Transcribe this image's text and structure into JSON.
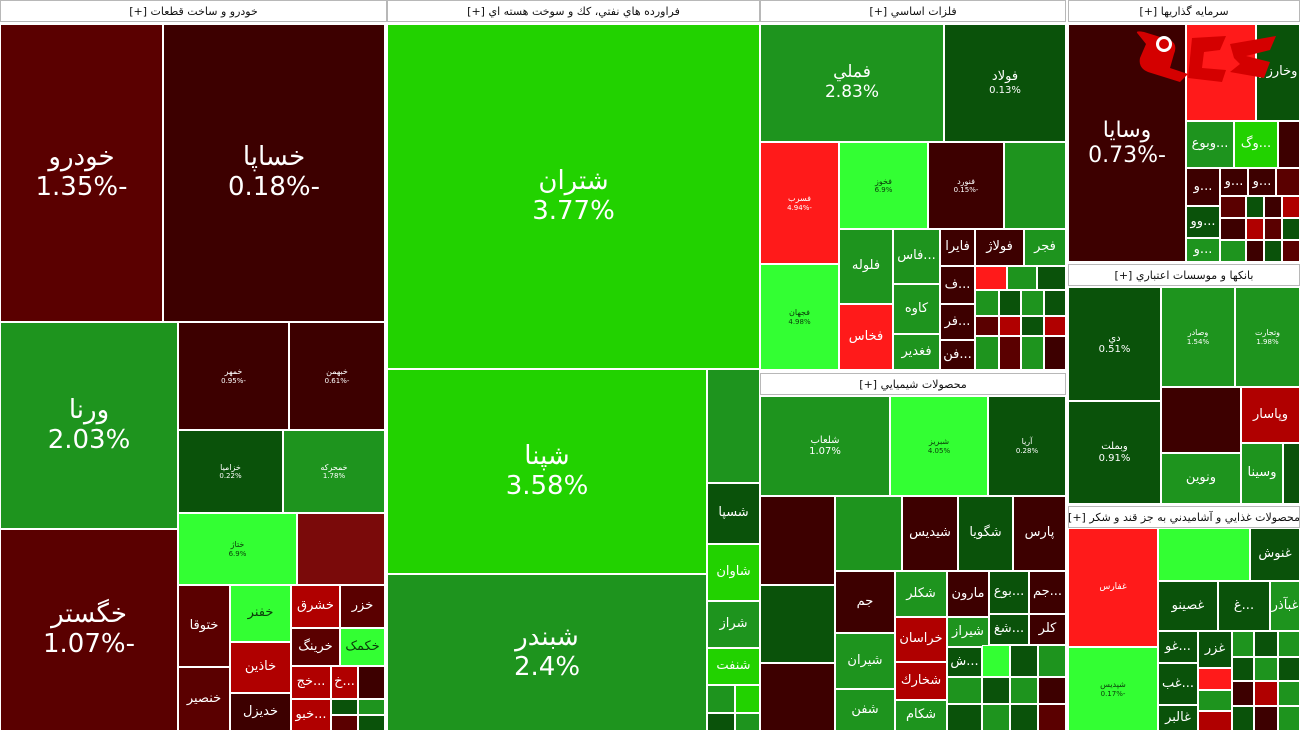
{
  "colors": {
    "dark_red": "#5a0000",
    "brown": "#3d0000",
    "red": "#b00000",
    "bright_red": "#ff1a1a",
    "dark_green": "#0a520a",
    "green": "#1e941e",
    "bright_green": "#22d200",
    "lime": "#33ff33"
  },
  "logo": {
    "text": "رکنا"
  },
  "sectors": [
    {
      "title": "خودرو و ساخت قطعات [+]"
    },
    {
      "title": "فراورده هاي نفتي، كك و سوخت هسته اي [+]"
    },
    {
      "title": "فلزات اساسي [+]"
    },
    {
      "title": "سرمايه گذاريها [+]"
    },
    {
      "title": "بانكها و موسسات اعتباري [+]"
    },
    {
      "title": "محصولات شيميايي [+]"
    },
    {
      "title": "محصولات غذايي و آشاميدني به جز قند و شكر [+]"
    }
  ],
  "tiles": [
    {
      "name": "خودرو",
      "pct": "-1.35%"
    },
    {
      "name": "خساپا",
      "pct": "-0.18%"
    },
    {
      "name": "ورنا",
      "pct": "2.03%"
    },
    {
      "name": "خمهر",
      "pct": "-0.95%"
    },
    {
      "name": "خبهمن",
      "pct": "-0.61%"
    },
    {
      "name": "خزامیا",
      "pct": "0.22%"
    },
    {
      "name": "خمحرکه",
      "pct": "1.78%"
    },
    {
      "name": "خگستر",
      "pct": "-1.07%"
    },
    {
      "name": "ختاژ",
      "pct": "6.9%"
    },
    {
      "name": "",
      "pct": ""
    },
    {
      "name": "ختوقا",
      "pct": ""
    },
    {
      "name": "خفنر",
      "pct": ""
    },
    {
      "name": "خشرق",
      "pct": ""
    },
    {
      "name": "خزر",
      "pct": ""
    },
    {
      "name": "خاذین",
      "pct": ""
    },
    {
      "name": "خرینگ",
      "pct": ""
    },
    {
      "name": "خکمک",
      "pct": ""
    },
    {
      "name": "خنصیر",
      "pct": ""
    },
    {
      "name": "خدیزل",
      "pct": ""
    },
    {
      "name": "...خج",
      "pct": ""
    },
    {
      "name": "...خ",
      "pct": ""
    },
    {
      "name": "...خبو",
      "pct": ""
    },
    {
      "name": "شتران",
      "pct": "3.77%"
    },
    {
      "name": "شپنا",
      "pct": "3.58%"
    },
    {
      "name": "شبندر",
      "pct": "2.4%"
    },
    {
      "name": "شسپا",
      "pct": ""
    },
    {
      "name": "شاوان",
      "pct": ""
    },
    {
      "name": "شراز",
      "pct": ""
    },
    {
      "name": "شنفت",
      "pct": ""
    },
    {
      "name": "فملي",
      "pct": "2.83%"
    },
    {
      "name": "فولاد",
      "pct": "0.13%"
    },
    {
      "name": "فسرب",
      "pct": "-4.94%"
    },
    {
      "name": "فخوز",
      "pct": "6.9%"
    },
    {
      "name": "فنورد",
      "pct": "-0.15%"
    },
    {
      "name": "فلوله",
      "pct": ""
    },
    {
      "name": "...فاس",
      "pct": ""
    },
    {
      "name": "فايرا",
      "pct": ""
    },
    {
      "name": "فولاژ",
      "pct": ""
    },
    {
      "name": "فجر",
      "pct": ""
    },
    {
      "name": "فجهان",
      "pct": "4.98%"
    },
    {
      "name": "كاوه",
      "pct": ""
    },
    {
      "name": "...ف",
      "pct": ""
    },
    {
      "name": "فخاس",
      "pct": ""
    },
    {
      "name": "...فر",
      "pct": ""
    },
    {
      "name": "فغدير",
      "pct": ""
    },
    {
      "name": "...فن",
      "pct": ""
    },
    {
      "name": "وسايا",
      "pct": "-0.73%"
    },
    {
      "name": "وخارزم",
      "pct": ""
    },
    {
      "name": "...وبوع",
      "pct": ""
    },
    {
      "name": "...وگ",
      "pct": ""
    },
    {
      "name": "...وو",
      "pct": ""
    },
    {
      "name": "...و",
      "pct": ""
    },
    {
      "name": "دي",
      "pct": "0.51%"
    },
    {
      "name": "وصادر",
      "pct": "1.54%"
    },
    {
      "name": "وتجارت",
      "pct": "1.98%"
    },
    {
      "name": "وبملت",
      "pct": "0.91%"
    },
    {
      "name": "وپاسار",
      "pct": ""
    },
    {
      "name": "ونوين",
      "pct": ""
    },
    {
      "name": "وسينا",
      "pct": ""
    },
    {
      "name": "شلعاب",
      "pct": "1.07%"
    },
    {
      "name": "شبريز",
      "pct": "4.05%"
    },
    {
      "name": "آريا",
      "pct": "0.28%"
    },
    {
      "name": "شيديس",
      "pct": ""
    },
    {
      "name": "شگويا",
      "pct": ""
    },
    {
      "name": "پارس",
      "pct": ""
    },
    {
      "name": "جم",
      "pct": ""
    },
    {
      "name": "شكلر",
      "pct": ""
    },
    {
      "name": "مارون",
      "pct": ""
    },
    {
      "name": "...بوع",
      "pct": ""
    },
    {
      "name": "...جم",
      "pct": ""
    },
    {
      "name": "خراسان",
      "pct": ""
    },
    {
      "name": "شيراز",
      "pct": ""
    },
    {
      "name": "...شغ",
      "pct": ""
    },
    {
      "name": "كلر",
      "pct": ""
    },
    {
      "name": "شيران",
      "pct": ""
    },
    {
      "name": "شخارك",
      "pct": ""
    },
    {
      "name": "شفن",
      "pct": ""
    },
    {
      "name": "شكام",
      "pct": ""
    },
    {
      "name": "...ش",
      "pct": ""
    },
    {
      "name": "غدشت",
      "pct": "-4.99%"
    },
    {
      "name": "غفارس",
      "pct": ""
    },
    {
      "name": "غنوش",
      "pct": ""
    },
    {
      "name": "غصينو",
      "pct": ""
    },
    {
      "name": "...غ",
      "pct": ""
    },
    {
      "name": "غبآذر",
      "pct": ""
    },
    {
      "name": "...غو",
      "pct": ""
    },
    {
      "name": "غزر",
      "pct": ""
    },
    {
      "name": "...غب",
      "pct": ""
    },
    {
      "name": "غالبر",
      "pct": "4.85%"
    },
    {
      "name": "شپديس",
      "pct": "-0.17%"
    }
  ]
}
